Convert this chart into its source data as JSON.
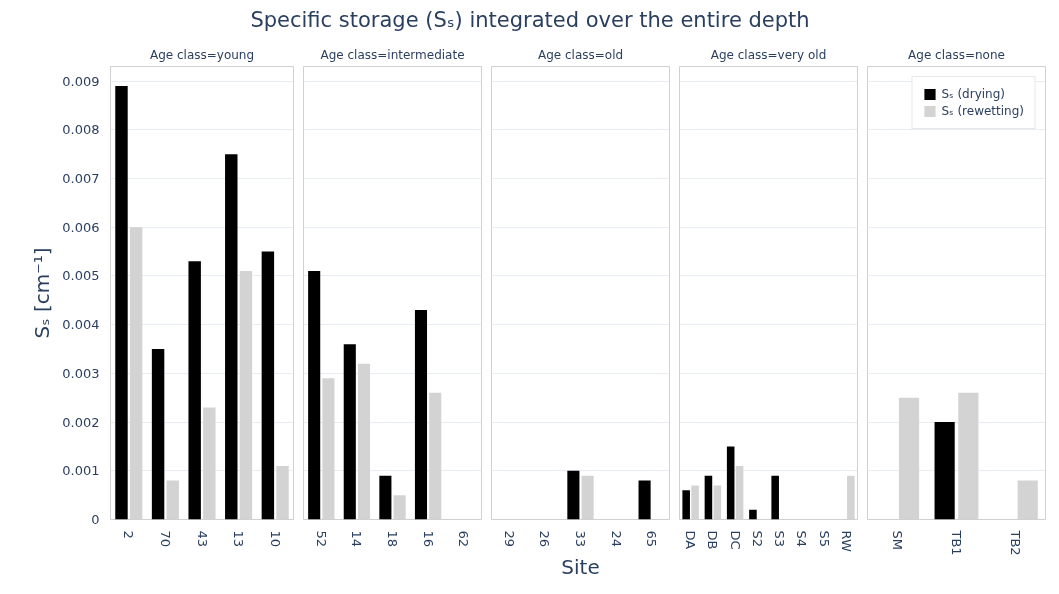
{
  "chart_data": [
    {
      "type": "bar",
      "title": "Specific storage (Sₛ) integrated over the entire depth",
      "subtitle": "Age class=young",
      "ylabel": "Sₛ [cm⁻¹]",
      "categories": [
        "2",
        "70",
        "43",
        "13",
        "10"
      ],
      "ylim": [
        0,
        0.0093
      ],
      "yticks": [
        0,
        0.001,
        0.002,
        0.003,
        0.004,
        0.005,
        0.006,
        0.007,
        0.008,
        0.009
      ],
      "grid": "y",
      "series": [
        {
          "color": "#000000",
          "values": [
            0.0089,
            0.0035,
            0.0053,
            0.0075,
            0.0055
          ]
        },
        {
          "color": "#d3d3d3",
          "values": [
            0.006,
            0.0008,
            0.0023,
            0.0051,
            0.0011
          ]
        }
      ]
    },
    {
      "type": "bar",
      "subtitle": "Age class=intermediate",
      "categories": [
        "52",
        "14",
        "18",
        "16",
        "62"
      ],
      "ylim": [
        0,
        0.0093
      ],
      "yticks": [
        0,
        0.001,
        0.002,
        0.003,
        0.004,
        0.005,
        0.006,
        0.007,
        0.008,
        0.009
      ],
      "grid": "y",
      "tick_labels": "x",
      "series": [
        {
          "color": "#000000",
          "values": [
            0.0051,
            0.0036,
            0.0009,
            0.0043,
            null
          ]
        },
        {
          "color": "#d3d3d3",
          "values": [
            0.0029,
            0.0032,
            0.0005,
            0.0026,
            null
          ]
        }
      ]
    },
    {
      "type": "bar",
      "subtitle": "Age class=old",
      "xlabel": "Site",
      "categories": [
        "29",
        "26",
        "33",
        "24",
        "65"
      ],
      "ylim": [
        0,
        0.0093
      ],
      "yticks": [
        0,
        0.001,
        0.002,
        0.003,
        0.004,
        0.005,
        0.006,
        0.007,
        0.008,
        0.009
      ],
      "grid": "y",
      "tick_labels": "x",
      "series": [
        {
          "color": "#000000",
          "values": [
            null,
            null,
            0.001,
            null,
            0.0008
          ]
        },
        {
          "color": "#d3d3d3",
          "values": [
            null,
            null,
            0.0009,
            null,
            null
          ]
        }
      ]
    },
    {
      "type": "bar",
      "subtitle": "Age class=very old",
      "categories": [
        "DA",
        "DB",
        "DC",
        "S2",
        "S3",
        "S4",
        "S5",
        "RW"
      ],
      "ylim": [
        0,
        0.0093
      ],
      "yticks": [
        0,
        0.001,
        0.002,
        0.003,
        0.004,
        0.005,
        0.006,
        0.007,
        0.008,
        0.009
      ],
      "grid": "y",
      "tick_labels": "x",
      "series": [
        {
          "color": "#000000",
          "values": [
            0.0006,
            0.0009,
            0.0015,
            0.0002,
            0.0009,
            null,
            null,
            null
          ]
        },
        {
          "color": "#d3d3d3",
          "values": [
            0.0007,
            0.0007,
            0.0011,
            null,
            null,
            null,
            null,
            0.0009
          ]
        }
      ]
    },
    {
      "type": "bar",
      "subtitle": "Age class=none",
      "categories": [
        "SM",
        "TB1",
        "TB2"
      ],
      "ylim": [
        0,
        0.0093
      ],
      "yticks": [
        0,
        0.001,
        0.002,
        0.003,
        0.004,
        0.005,
        0.006,
        0.007,
        0.008,
        0.009
      ],
      "grid": "y",
      "tick_labels": "x",
      "legend": "top right",
      "series": [
        {
          "name": "Sₛ (drying)",
          "color": "#000000",
          "values": [
            null,
            0.002,
            null
          ]
        },
        {
          "name": "Sₛ (rewetting)",
          "color": "#d3d3d3",
          "values": [
            0.0025,
            0.0026,
            0.0008
          ]
        }
      ]
    }
  ]
}
